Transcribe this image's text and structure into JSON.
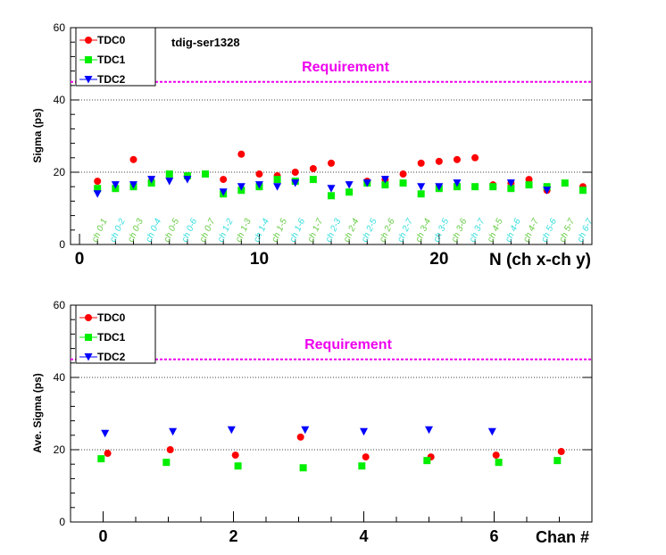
{
  "colors": {
    "tdc0": "#ff0000",
    "tdc1": "#00ee00",
    "tdc2": "#0000ff",
    "requirement": "#ee00ee",
    "ch_label_green": "#66cc44",
    "ch_label_cyan": "#33dddd"
  },
  "chart_data": [
    {
      "type": "scatter",
      "annotation": "tdig-ser1328",
      "xlabel": "N (ch x-ch y)",
      "ylabel": "Sigma (ps)",
      "xlim": [
        -0.5,
        28.5
      ],
      "ylim": [
        0,
        60
      ],
      "x_ticks": [
        0,
        10,
        20
      ],
      "y_ticks": [
        0,
        20,
        40,
        60
      ],
      "grid": "horizontal dotted at y ticks",
      "legend_position": "top-left",
      "requirement": {
        "label": "Requirement",
        "value": 45
      },
      "x": [
        1,
        2,
        3,
        4,
        5,
        6,
        7,
        8,
        9,
        10,
        11,
        12,
        13,
        14,
        15,
        16,
        17,
        18,
        19,
        20,
        21,
        22,
        23,
        24,
        25,
        26,
        27,
        28
      ],
      "category_labels": [
        "ch 0-1",
        "ch 0-2",
        "ch 0-3",
        "ch 0-4",
        "ch 0-5",
        "ch 0-6",
        "ch 0-7",
        "ch 1-2",
        "ch 1-3",
        "ch 1-4",
        "ch 1-5",
        "ch 1-6",
        "ch 1-7",
        "ch 2-3",
        "ch 2-4",
        "ch 2-5",
        "ch 2-6",
        "ch 2-7",
        "ch 3-4",
        "ch 3-5",
        "ch 3-6",
        "ch 3-7",
        "ch 4-5",
        "ch 4-6",
        "ch 4-7",
        "ch 5-6",
        "ch 5-7",
        "ch 6-7"
      ],
      "series": [
        {
          "name": "TDC0",
          "marker": "circle",
          "x": [
            1,
            3,
            4,
            6,
            7,
            8,
            9,
            10,
            11,
            12,
            13,
            14,
            16,
            17,
            18,
            19,
            20,
            21,
            22,
            23,
            24,
            25,
            26,
            28
          ],
          "values": [
            17.5,
            23.5,
            17.5,
            19.0,
            19.5,
            18.0,
            25.0,
            19.5,
            19.0,
            20.0,
            21.0,
            22.5,
            17.5,
            18.0,
            19.5,
            22.5,
            23.0,
            23.5,
            24.0,
            16.5,
            17.0,
            18.0,
            15.0,
            16.0
          ]
        },
        {
          "name": "TDC1",
          "marker": "square",
          "x": [
            1,
            2,
            3,
            4,
            5,
            6,
            7,
            8,
            9,
            10,
            11,
            12,
            13,
            14,
            15,
            16,
            17,
            18,
            19,
            20,
            21,
            22,
            23,
            24,
            25,
            26,
            27,
            28
          ],
          "values": [
            15.5,
            15.5,
            16.0,
            17.0,
            19.5,
            19.0,
            19.5,
            14.0,
            15.0,
            16.0,
            18.0,
            17.5,
            18.0,
            13.5,
            14.5,
            17.0,
            16.5,
            17.0,
            14.0,
            15.5,
            16.0,
            16.0,
            16.0,
            15.5,
            16.5,
            16.0,
            17.0,
            15.0
          ]
        },
        {
          "name": "TDC2",
          "marker": "triangle-down",
          "x": [
            1,
            2,
            3,
            4,
            5,
            6,
            8,
            9,
            10,
            11,
            12,
            14,
            15,
            16,
            17,
            19,
            20,
            21,
            24,
            26
          ],
          "values": [
            14.0,
            16.5,
            16.5,
            18.0,
            17.5,
            18.0,
            14.5,
            16.0,
            16.5,
            16.0,
            17.0,
            15.5,
            16.5,
            17.0,
            18.0,
            16.0,
            16.0,
            17.0,
            17.0,
            15.0
          ]
        }
      ]
    },
    {
      "type": "scatter",
      "xlabel": "Chan #",
      "ylabel": "Ave. Sigma (ps)",
      "xlim": [
        -0.5,
        7.5
      ],
      "ylim": [
        0,
        60
      ],
      "x_ticks": [
        0,
        2,
        4,
        6
      ],
      "y_ticks": [
        0,
        20,
        40,
        60
      ],
      "grid": "horizontal dotted at y ticks",
      "legend_position": "top-left",
      "requirement": {
        "label": "Requirement",
        "value": 45
      },
      "series": [
        {
          "name": "TDC0",
          "marker": "circle",
          "x": [
            0.07,
            1.03,
            2.03,
            3.03,
            4.03,
            5.03,
            6.03,
            7.03
          ],
          "values": [
            19.0,
            20.0,
            18.5,
            23.5,
            18.0,
            18.0,
            18.5,
            19.5
          ]
        },
        {
          "name": "TDC1",
          "marker": "square",
          "x": [
            -0.03,
            0.97,
            2.07,
            3.07,
            3.97,
            4.97,
            6.07,
            6.97
          ],
          "values": [
            17.5,
            16.5,
            15.5,
            15.0,
            15.5,
            17.0,
            16.5,
            17.0
          ]
        },
        {
          "name": "TDC2",
          "marker": "triangle-down",
          "x": [
            0.03,
            1.07,
            1.97,
            3.1,
            4.0,
            5.0,
            5.97
          ],
          "values": [
            24.5,
            25.0,
            25.5,
            25.5,
            25.0,
            25.5,
            25.0
          ]
        }
      ]
    }
  ]
}
